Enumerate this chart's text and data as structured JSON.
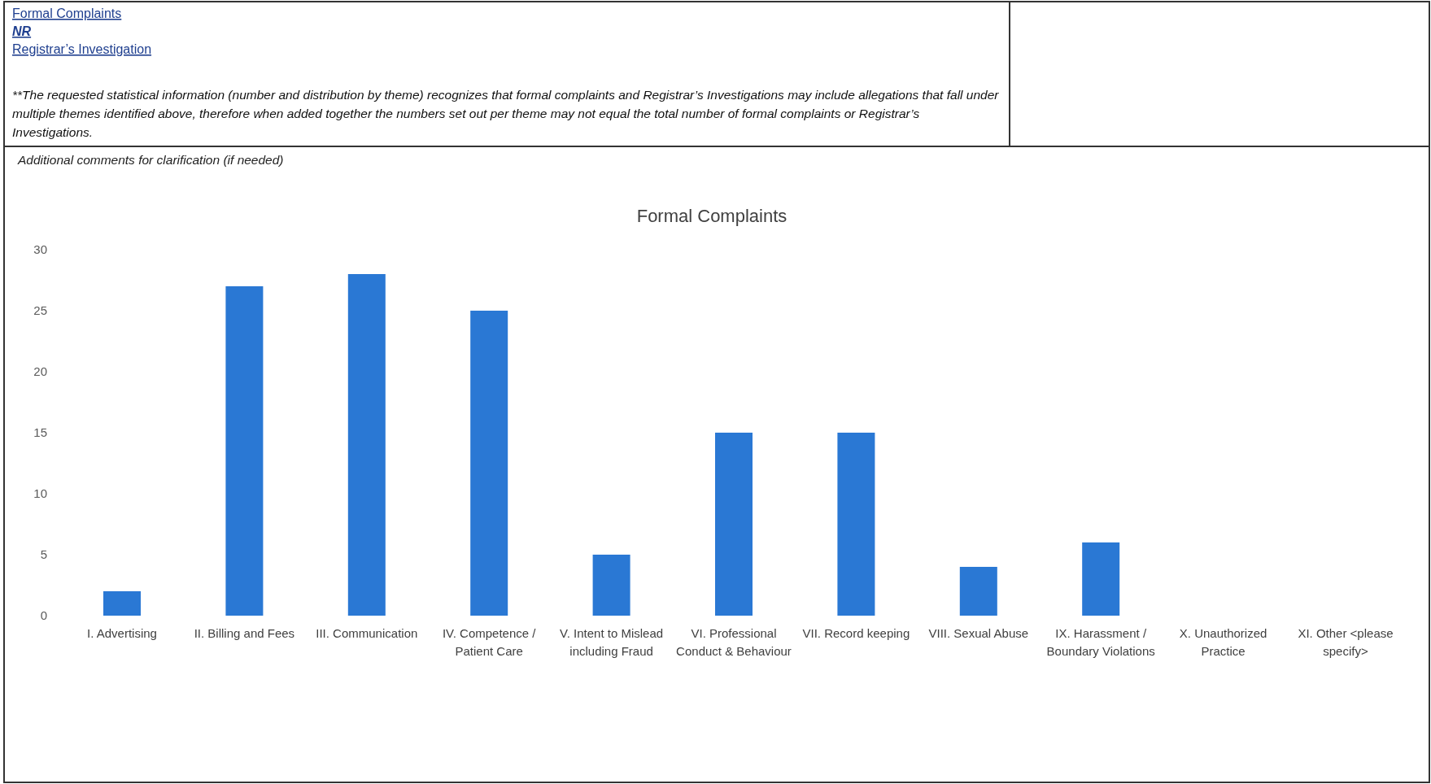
{
  "chart_data": {
    "type": "bar",
    "title": "Formal Complaints",
    "categories": [
      "I. Advertising",
      "II. Billing and Fees",
      "III. Communication",
      "IV. Competence / Patient Care",
      "V. Intent to Mislead including Fraud",
      "VI. Professional Conduct & Behaviour",
      "VII. Record keeping",
      "VIII. Sexual Abuse",
      "IX. Harassment / Boundary Violations",
      "X. Unauthorized Practice",
      "XI. Other <please specify>"
    ],
    "values": [
      2,
      27,
      28,
      25,
      5,
      15,
      15,
      4,
      6,
      0,
      0
    ],
    "color": "#2a78d4",
    "ylim": [
      0,
      30
    ],
    "yticks": [
      0,
      5,
      10,
      15,
      20,
      25,
      30
    ],
    "annotations": [
      "Formal Complaints",
      "NR",
      "Registrar’s Investigation",
      "**The requested statistical information (number and distribution by theme) recognizes that formal complaints and Registrar’s Investigations may include allegations that fall under multiple themes identified above, therefore when added together the numbers set out per theme may not equal the total number of formal complaints or Registrar’s Investigations.",
      "Additional comments for clarification (if needed)"
    ]
  }
}
